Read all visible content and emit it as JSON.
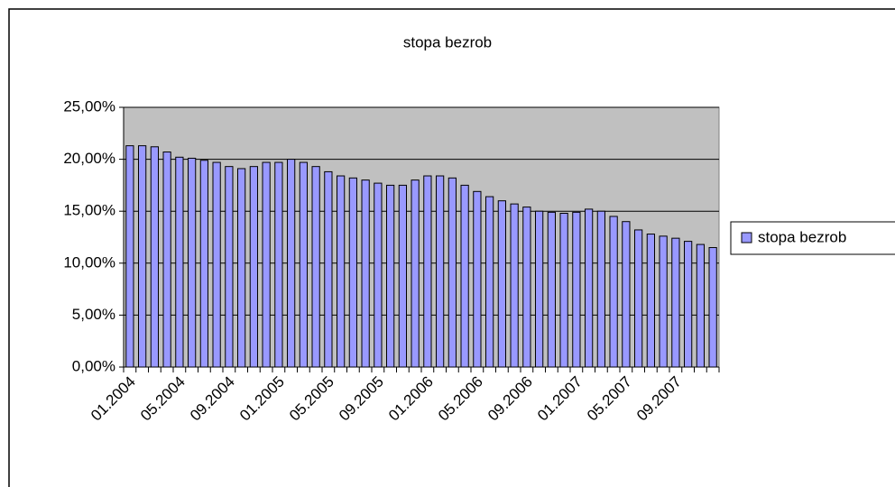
{
  "chart_data": {
    "type": "bar",
    "title": "stopa bezrob",
    "categories": [
      "01.2004",
      null,
      null,
      null,
      "05.2004",
      null,
      null,
      null,
      "09.2004",
      null,
      null,
      null,
      "01.2005",
      null,
      null,
      null,
      "05.2005",
      null,
      null,
      null,
      "09.2005",
      null,
      null,
      null,
      "01.2006",
      null,
      null,
      null,
      "05.2006",
      null,
      null,
      null,
      "09.2006",
      null,
      null,
      null,
      "01.2007",
      null,
      null,
      null,
      "05.2007",
      null,
      null,
      null,
      "09.2007",
      null,
      null,
      null
    ],
    "series": [
      {
        "name": "stopa bezrob",
        "color": "#9999ff",
        "values": [
          21.3,
          21.3,
          21.2,
          20.7,
          20.2,
          20.1,
          19.9,
          19.7,
          19.3,
          19.1,
          19.3,
          19.7,
          19.7,
          20.0,
          19.7,
          19.3,
          18.8,
          18.4,
          18.2,
          18.0,
          17.7,
          17.5,
          17.5,
          18.0,
          18.4,
          18.4,
          18.2,
          17.5,
          16.9,
          16.4,
          16.0,
          15.7,
          15.4,
          15.0,
          14.9,
          14.8,
          14.9,
          15.2,
          15.0,
          14.5,
          14.0,
          13.2,
          12.8,
          12.6,
          12.4,
          12.1,
          11.8,
          11.5
        ]
      }
    ],
    "ylim": [
      0,
      25
    ],
    "yticks": [
      {
        "value": 0,
        "label": "0,00%"
      },
      {
        "value": 5,
        "label": "5,00%"
      },
      {
        "value": 10,
        "label": "10,00%"
      },
      {
        "value": 15,
        "label": "15,00%"
      },
      {
        "value": 20,
        "label": "20,00%"
      },
      {
        "value": 25,
        "label": "25,00%"
      }
    ],
    "grid": true,
    "legend": "right"
  }
}
